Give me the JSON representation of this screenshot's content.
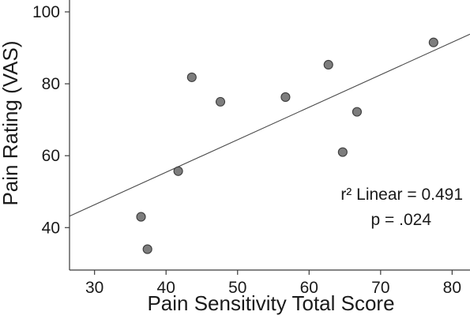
{
  "chart_data": {
    "type": "scatter",
    "title": "",
    "xlabel": "Pain Sensitivity Total Score",
    "ylabel": "Pain Rating (VAS)",
    "xlim": [
      26.5,
      82.5
    ],
    "ylim": [
      28.2,
      103.3
    ],
    "xticks": [
      30,
      40,
      50,
      60,
      70,
      80
    ],
    "yticks": [
      40,
      60,
      80,
      100
    ],
    "grid": false,
    "points": [
      {
        "x": 36.5,
        "y": 43.0
      },
      {
        "x": 37.4,
        "y": 34.0
      },
      {
        "x": 41.7,
        "y": 55.7
      },
      {
        "x": 43.6,
        "y": 81.8
      },
      {
        "x": 47.6,
        "y": 75.0
      },
      {
        "x": 56.7,
        "y": 76.3
      },
      {
        "x": 62.7,
        "y": 85.3
      },
      {
        "x": 64.7,
        "y": 61.0
      },
      {
        "x": 66.7,
        "y": 72.2
      },
      {
        "x": 77.4,
        "y": 91.5
      }
    ],
    "fit_line": {
      "x": [
        26.5,
        82.5
      ],
      "y": [
        43.2,
        93.8
      ]
    },
    "annotations": {
      "r2": "r² Linear = 0.491",
      "p": "p = .024"
    }
  }
}
